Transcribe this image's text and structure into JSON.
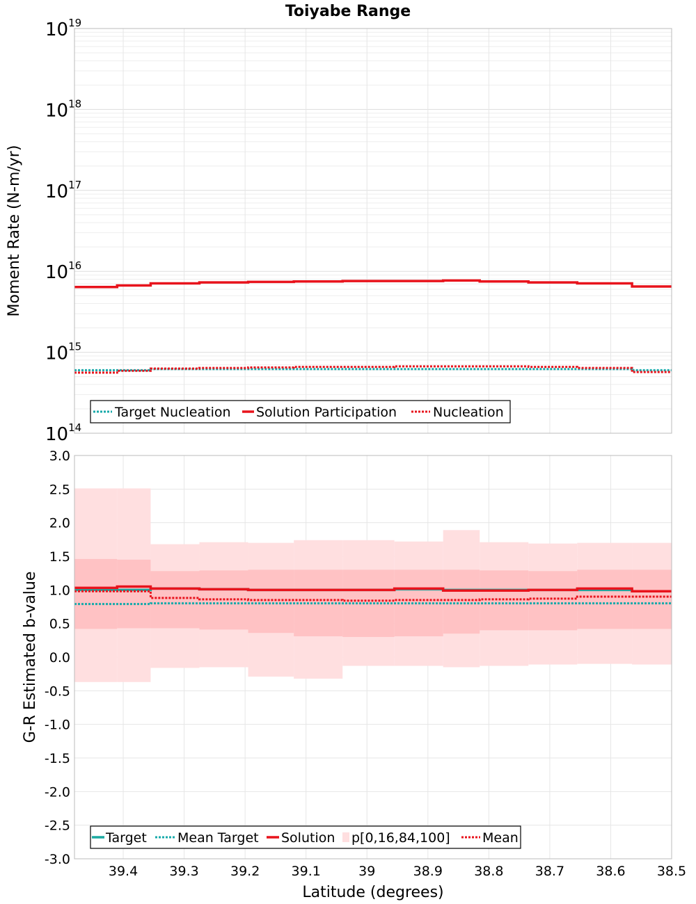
{
  "chart_data": [
    {
      "type": "line",
      "title": "Toiyabe Range",
      "xlabel": "",
      "ylabel": "Moment Rate (N-m/yr)",
      "yscale": "log",
      "ylim": [
        100000000000000.0,
        1e+19
      ],
      "xlim": [
        39.48,
        38.5
      ],
      "y_ticks": [
        {
          "base": "10",
          "exp": "14",
          "value": 100000000000000.0
        },
        {
          "base": "10",
          "exp": "15",
          "value": 1000000000000000.0
        },
        {
          "base": "10",
          "exp": "16",
          "value": 1e+16
        },
        {
          "base": "10",
          "exp": "17",
          "value": 1e+17
        },
        {
          "base": "10",
          "exp": "18",
          "value": 1e+18
        },
        {
          "base": "10",
          "exp": "19",
          "value": 1e+19
        }
      ],
      "bin_edges": [
        39.48,
        39.41,
        39.355,
        39.275,
        39.195,
        39.12,
        39.04,
        38.955,
        38.875,
        38.815,
        38.735,
        38.655,
        38.565,
        38.5
      ],
      "series": [
        {
          "name": "Target Nucleation",
          "style": "dotted",
          "color": "#17aaaa",
          "values": [
            600000000000000.0,
            600000000000000.0,
            620000000000000.0,
            620000000000000.0,
            620000000000000.0,
            620000000000000.0,
            620000000000000.0,
            620000000000000.0,
            620000000000000.0,
            620000000000000.0,
            620000000000000.0,
            620000000000000.0,
            600000000000000.0
          ]
        },
        {
          "name": "Solution Participation",
          "style": "solid",
          "color": "#e8131c",
          "values": [
            6400000000000000.0,
            6700000000000000.0,
            7100000000000000.0,
            7300000000000000.0,
            7400000000000000.0,
            7500000000000000.0,
            7600000000000000.0,
            7600000000000000.0,
            7700000000000000.0,
            7500000000000000.0,
            7300000000000000.0,
            7100000000000000.0,
            6500000000000000.0
          ]
        },
        {
          "name": "Nucleation",
          "style": "dotted",
          "color": "#e8131c",
          "values": [
            560000000000000.0,
            590000000000000.0,
            630000000000000.0,
            640000000000000.0,
            650000000000000.0,
            660000000000000.0,
            660000000000000.0,
            670000000000000.0,
            670000000000000.0,
            670000000000000.0,
            660000000000000.0,
            640000000000000.0,
            570000000000000.0
          ]
        }
      ],
      "legend": {
        "position": "bottom-left",
        "entries": [
          "Target Nucleation",
          "Solution Participation",
          "Nucleation"
        ]
      }
    },
    {
      "type": "line",
      "title": "",
      "xlabel": "Latitude (degrees)",
      "ylabel": "G-R Estimated b-value",
      "ylim": [
        -3.0,
        3.0
      ],
      "xlim": [
        39.48,
        38.5
      ],
      "x_ticks": [
        {
          "label": "39.4",
          "value": 39.4
        },
        {
          "label": "39.3",
          "value": 39.3
        },
        {
          "label": "39.2",
          "value": 39.2
        },
        {
          "label": "39.1",
          "value": 39.1
        },
        {
          "label": "39",
          "value": 39.0
        },
        {
          "label": "38.9",
          "value": 38.9
        },
        {
          "label": "38.8",
          "value": 38.8
        },
        {
          "label": "38.7",
          "value": 38.7
        },
        {
          "label": "38.6",
          "value": 38.6
        },
        {
          "label": "38.5",
          "value": 38.5
        }
      ],
      "y_ticks": [
        {
          "label": "3.0",
          "value": 3.0
        },
        {
          "label": "2.5",
          "value": 2.5
        },
        {
          "label": "2.0",
          "value": 2.0
        },
        {
          "label": "1.5",
          "value": 1.5
        },
        {
          "label": "1.0",
          "value": 1.0
        },
        {
          "label": "0.5",
          "value": 0.5
        },
        {
          "label": "0.0",
          "value": 0.0
        },
        {
          "label": "-0.5",
          "value": -0.5
        },
        {
          "label": "-1.0",
          "value": -1.0
        },
        {
          "label": "-1.5",
          "value": -1.5
        },
        {
          "label": "-2.0",
          "value": -2.0
        },
        {
          "label": "-2.5",
          "value": -2.5
        },
        {
          "label": "-3.0",
          "value": -3.0
        }
      ],
      "bin_edges": [
        39.48,
        39.41,
        39.355,
        39.275,
        39.195,
        39.12,
        39.04,
        38.955,
        38.875,
        38.815,
        38.735,
        38.655,
        38.565,
        38.5
      ],
      "bands": [
        {
          "name": "p[0,16,84,100]",
          "range": "p0-p100",
          "color": "#ffdfe0",
          "lower": [
            -0.37,
            -0.37,
            -0.16,
            -0.15,
            -0.29,
            -0.32,
            -0.13,
            -0.13,
            -0.15,
            -0.13,
            -0.11,
            -0.1,
            -0.11
          ],
          "upper": [
            2.51,
            2.51,
            1.68,
            1.71,
            1.7,
            1.74,
            1.74,
            1.72,
            1.89,
            1.71,
            1.69,
            1.7,
            1.7
          ]
        },
        {
          "name": "p[0,16,84,100]",
          "range": "p16-p84",
          "color": "#ffc2c4",
          "lower": [
            0.42,
            0.43,
            0.43,
            0.41,
            0.36,
            0.31,
            0.3,
            0.31,
            0.35,
            0.4,
            0.4,
            0.42,
            0.42
          ],
          "upper": [
            1.46,
            1.45,
            1.28,
            1.29,
            1.3,
            1.3,
            1.3,
            1.3,
            1.3,
            1.29,
            1.28,
            1.3,
            1.3
          ]
        }
      ],
      "series": [
        {
          "name": "Target",
          "style": "solid",
          "color": "#1aa9a0",
          "values": [
            1.0,
            1.0,
            1.02,
            1.01,
            1.0,
            1.0,
            1.0,
            1.01,
            1.0,
            1.0,
            1.0,
            1.0,
            0.98
          ]
        },
        {
          "name": "Mean Target",
          "style": "dotted",
          "color": "#17aaaa",
          "values": [
            0.79,
            0.79,
            0.8,
            0.8,
            0.8,
            0.8,
            0.8,
            0.8,
            0.8,
            0.8,
            0.8,
            0.8,
            0.8
          ]
        },
        {
          "name": "Solution",
          "style": "solid",
          "color": "#e8131c",
          "values": [
            1.03,
            1.05,
            1.02,
            1.01,
            1.0,
            1.0,
            1.0,
            1.02,
            0.99,
            0.99,
            1.0,
            1.02,
            0.98
          ]
        },
        {
          "name": "Mean",
          "style": "dotted",
          "color": "#e8131c",
          "values": [
            0.98,
            0.98,
            0.88,
            0.86,
            0.85,
            0.85,
            0.84,
            0.85,
            0.85,
            0.86,
            0.87,
            0.9,
            0.9
          ]
        }
      ],
      "legend": {
        "position": "bottom-left",
        "entries": [
          "Target",
          "Mean Target",
          "Solution",
          "p[0,16,84,100]",
          "Mean"
        ]
      }
    }
  ]
}
